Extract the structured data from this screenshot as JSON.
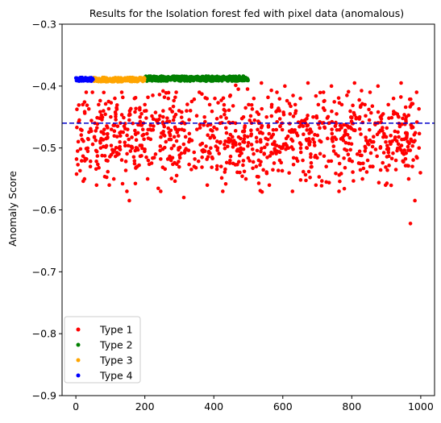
{
  "chart_data": {
    "type": "scatter",
    "title": "Results for the Isolation forest fed with pixel data (anomalous)",
    "xlabel": "",
    "ylabel": "Anomaly Score",
    "xlim": [
      -40,
      1040
    ],
    "ylim": [
      -0.9,
      -0.3
    ],
    "xticks": [
      0,
      200,
      400,
      600,
      800,
      1000
    ],
    "yticks": [
      -0.9,
      -0.8,
      -0.7,
      -0.6,
      -0.5,
      -0.4,
      -0.3
    ],
    "xtick_labels": [
      "0",
      "200",
      "400",
      "600",
      "800",
      "1000"
    ],
    "ytick_labels": [
      "−0.9",
      "−0.8",
      "−0.7",
      "−0.6",
      "−0.5",
      "−0.4",
      "−0.3"
    ],
    "threshold": {
      "y": -0.46,
      "color": "#0000cc",
      "style": "dashed"
    },
    "legend_position": "lower-left",
    "grid": false,
    "series": [
      {
        "name": "Type 1",
        "color": "#ff0000",
        "x_range": [
          0,
          1000
        ],
        "y_range": [
          -0.585,
          -0.385
        ],
        "outliers": [
          {
            "x": 970,
            "y": -0.622
          },
          {
            "x": 983,
            "y": -0.585
          },
          {
            "x": 155,
            "y": -0.585
          }
        ],
        "points": [
          [
            5,
            -0.505
          ],
          [
            10,
            -0.455
          ],
          [
            14,
            -0.47
          ],
          [
            20,
            -0.43
          ],
          [
            25,
            -0.55
          ],
          [
            30,
            -0.41
          ],
          [
            35,
            -0.485
          ],
          [
            42,
            -0.53
          ],
          [
            48,
            -0.41
          ],
          [
            55,
            -0.46
          ],
          [
            60,
            -0.56
          ],
          [
            66,
            -0.43
          ],
          [
            72,
            -0.5
          ],
          [
            80,
            -0.44
          ],
          [
            88,
            -0.52
          ],
          [
            95,
            -0.425
          ],
          [
            103,
            -0.47
          ],
          [
            110,
            -0.55
          ],
          [
            118,
            -0.435
          ],
          [
            125,
            -0.5
          ],
          [
            133,
            -0.41
          ],
          [
            140,
            -0.465
          ],
          [
            148,
            -0.57
          ],
          [
            156,
            -0.445
          ],
          [
            163,
            -0.5
          ],
          [
            170,
            -0.42
          ],
          [
            178,
            -0.53
          ],
          [
            186,
            -0.45
          ],
          [
            193,
            -0.48
          ],
          [
            200,
            -0.43
          ],
          [
            208,
            -0.55
          ],
          [
            215,
            -0.47
          ],
          [
            223,
            -0.415
          ],
          [
            231,
            -0.51
          ],
          [
            238,
            -0.46
          ],
          [
            246,
            -0.57
          ],
          [
            253,
            -0.44
          ],
          [
            261,
            -0.49
          ],
          [
            268,
            -0.42
          ],
          [
            276,
            -0.52
          ],
          [
            283,
            -0.455
          ],
          [
            291,
            -0.41
          ],
          [
            298,
            -0.5
          ],
          [
            306,
            -0.46
          ],
          [
            313,
            -0.58
          ],
          [
            321,
            -0.44
          ],
          [
            328,
            -0.49
          ],
          [
            336,
            -0.425
          ],
          [
            343,
            -0.53
          ],
          [
            351,
            -0.47
          ],
          [
            358,
            -0.41
          ],
          [
            366,
            -0.515
          ],
          [
            373,
            -0.45
          ],
          [
            381,
            -0.56
          ],
          [
            388,
            -0.43
          ],
          [
            396,
            -0.48
          ],
          [
            403,
            -0.42
          ],
          [
            411,
            -0.5
          ],
          [
            418,
            -0.46
          ],
          [
            426,
            -0.57
          ],
          [
            433,
            -0.44
          ],
          [
            441,
            -0.49
          ],
          [
            448,
            -0.415
          ],
          [
            456,
            -0.525
          ],
          [
            463,
            -0.46
          ],
          [
            471,
            -0.405
          ],
          [
            478,
            -0.5
          ],
          [
            486,
            -0.45
          ],
          [
            493,
            -0.55
          ],
          [
            501,
            -0.43
          ],
          [
            508,
            -0.48
          ],
          [
            516,
            -0.42
          ],
          [
            523,
            -0.53
          ],
          [
            531,
            -0.46
          ],
          [
            538,
            -0.395
          ],
          [
            546,
            -0.51
          ],
          [
            553,
            -0.45
          ],
          [
            561,
            -0.56
          ],
          [
            568,
            -0.43
          ],
          [
            576,
            -0.49
          ],
          [
            583,
            -0.41
          ],
          [
            591,
            -0.52
          ],
          [
            598,
            -0.46
          ],
          [
            606,
            -0.4
          ],
          [
            613,
            -0.5
          ],
          [
            621,
            -0.445
          ],
          [
            628,
            -0.57
          ],
          [
            636,
            -0.43
          ],
          [
            643,
            -0.48
          ],
          [
            651,
            -0.42
          ],
          [
            658,
            -0.52
          ],
          [
            666,
            -0.46
          ],
          [
            673,
            -0.395
          ],
          [
            681,
            -0.51
          ],
          [
            688,
            -0.45
          ],
          [
            696,
            -0.56
          ],
          [
            703,
            -0.43
          ],
          [
            711,
            -0.49
          ],
          [
            718,
            -0.41
          ],
          [
            726,
            -0.53
          ],
          [
            733,
            -0.46
          ],
          [
            741,
            -0.4
          ],
          [
            748,
            -0.505
          ],
          [
            756,
            -0.445
          ],
          [
            763,
            -0.57
          ],
          [
            771,
            -0.43
          ],
          [
            778,
            -0.48
          ],
          [
            786,
            -0.415
          ],
          [
            793,
            -0.52
          ],
          [
            801,
            -0.46
          ],
          [
            808,
            -0.395
          ],
          [
            816,
            -0.51
          ],
          [
            823,
            -0.45
          ],
          [
            831,
            -0.55
          ],
          [
            838,
            -0.43
          ],
          [
            846,
            -0.49
          ],
          [
            853,
            -0.41
          ],
          [
            861,
            -0.53
          ],
          [
            868,
            -0.46
          ],
          [
            876,
            -0.4
          ],
          [
            883,
            -0.5
          ],
          [
            891,
            -0.445
          ],
          [
            898,
            -0.56
          ],
          [
            906,
            -0.43
          ],
          [
            913,
            -0.48
          ],
          [
            921,
            -0.42
          ],
          [
            928,
            -0.52
          ],
          [
            936,
            -0.45
          ],
          [
            943,
            -0.395
          ],
          [
            951,
            -0.51
          ],
          [
            958,
            -0.45
          ],
          [
            965,
            -0.55
          ],
          [
            973,
            -0.43
          ],
          [
            980,
            -0.49
          ],
          [
            988,
            -0.41
          ],
          [
            995,
            -0.5
          ],
          [
            999,
            -0.54
          ]
        ]
      },
      {
        "name": "Type 2",
        "color": "#008000",
        "x_range": [
          200,
          500
        ],
        "y_range": [
          -0.392,
          -0.384
        ]
      },
      {
        "name": "Type 3",
        "color": "#ffa500",
        "x_range": [
          50,
          200
        ],
        "y_range": [
          -0.393,
          -0.386
        ]
      },
      {
        "name": "Type 4",
        "color": "#0000ff",
        "x_range": [
          0,
          50
        ],
        "y_range": [
          -0.392,
          -0.386
        ]
      }
    ]
  }
}
